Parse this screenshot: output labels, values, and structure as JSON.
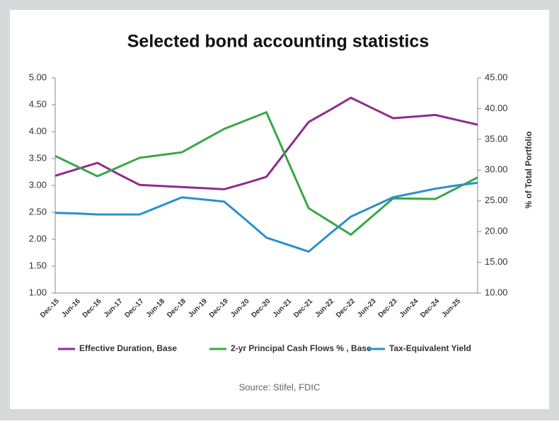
{
  "chart_data": {
    "type": "line",
    "title": "Selected bond accounting statistics",
    "y2label": "% of Total Portfolio",
    "source": "Source: Stifel, FDIC",
    "categories": [
      "Dec-15",
      "Jun-16",
      "Dec-16",
      "Jun-17",
      "Dec-17",
      "Jun-18",
      "Dec-18",
      "Jun-19",
      "Dec-19",
      "Jun-20",
      "Dec-20",
      "Jun-21",
      "Dec-21",
      "Jun-22",
      "Dec-22",
      "Jun-23",
      "Dec-23",
      "Jun-24",
      "Dec-24",
      "Jun-25",
      null
    ],
    "series": [
      {
        "name": "Effective Duration, Base",
        "color": "#8e2c8e",
        "values": [
          3.18,
          3.3,
          3.42,
          3.21,
          3.01,
          2.99,
          2.97,
          2.95,
          2.93,
          3.04,
          3.16,
          3.67,
          4.18,
          4.4,
          4.63,
          4.44,
          4.25,
          4.28,
          4.31,
          4.22,
          4.13
        ]
      },
      {
        "name": "2-yr Principal Cash Flows % , Base",
        "color": "#3aa648",
        "axis": "y2",
        "values": [
          32.3,
          30.65,
          29.0,
          30.5,
          32.0,
          32.45,
          32.9,
          34.8,
          36.7,
          38.05,
          39.4,
          31.6,
          23.8,
          21.65,
          19.5,
          22.45,
          25.4,
          25.35,
          25.3,
          27.05,
          28.8
        ]
      },
      {
        "name": "Tax-Equivalent Yield",
        "color": "#2a8fcf",
        "values": [
          2.49,
          2.48,
          2.46,
          2.46,
          2.46,
          2.62,
          2.78,
          2.74,
          2.7,
          2.37,
          2.03,
          1.9,
          1.77,
          2.1,
          2.42,
          2.6,
          2.78,
          2.86,
          2.94,
          3.0,
          3.05
        ]
      }
    ],
    "ylim": [
      1,
      5
    ],
    "yticks": [
      {
        "value": 1,
        "label": "1.00"
      },
      {
        "value": 1.5,
        "label": "1.50"
      },
      {
        "value": 2,
        "label": "2.00"
      },
      {
        "value": 2.5,
        "label": "2.50"
      },
      {
        "value": 3,
        "label": "3.00"
      },
      {
        "value": 3.5,
        "label": "3.50"
      },
      {
        "value": 4,
        "label": "4.00"
      },
      {
        "value": 4.5,
        "label": "4.50"
      },
      {
        "value": 5,
        "label": "5.00"
      }
    ],
    "y2lim": [
      10,
      45
    ],
    "y2ticks": [
      {
        "value": 10,
        "label": "10.00"
      },
      {
        "value": 15,
        "label": "15.00"
      },
      {
        "value": 20,
        "label": "20.00"
      },
      {
        "value": 25,
        "label": "25.00"
      },
      {
        "value": 30,
        "label": "30.00"
      },
      {
        "value": 35,
        "label": "35.00"
      },
      {
        "value": 40,
        "label": "40.00"
      },
      {
        "value": 45,
        "label": "45.00"
      }
    ]
  }
}
